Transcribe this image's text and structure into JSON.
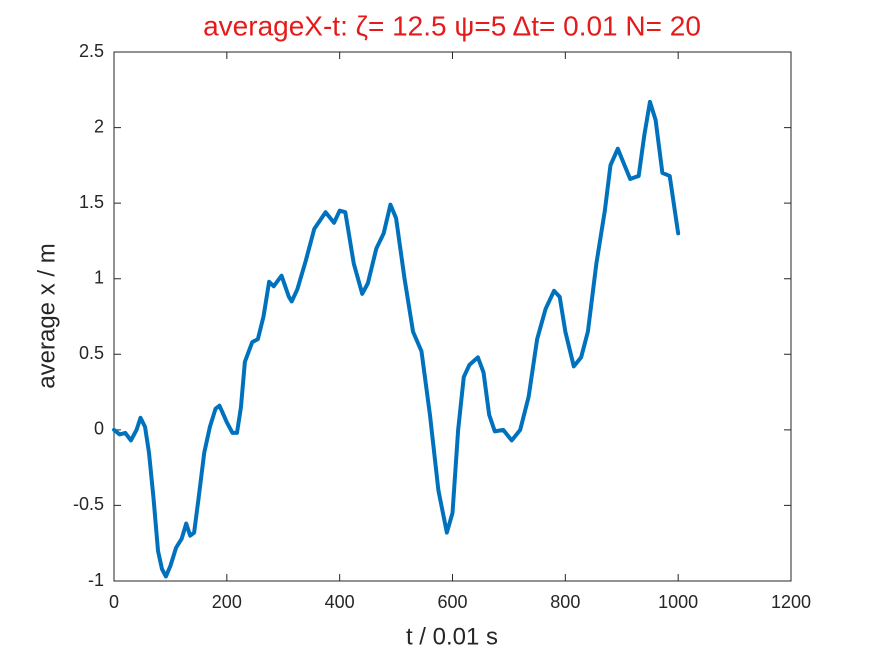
{
  "chart_data": {
    "type": "line",
    "title": "averageX-t:  ζ= 12.5 ψ=5 Δt= 0.01 N= 20",
    "x_label": "t / 0.01 s",
    "y_label": "average x / m",
    "x": [
      0,
      10,
      20,
      30,
      40,
      47,
      55,
      62,
      70,
      78,
      85,
      92,
      100,
      110,
      120,
      128,
      135,
      142,
      150,
      160,
      170,
      180,
      187,
      200,
      210,
      218,
      225,
      232,
      245,
      255,
      265,
      275,
      283,
      297,
      310,
      315,
      325,
      340,
      355,
      375,
      390,
      400,
      410,
      425,
      440,
      450,
      465,
      478,
      490,
      500,
      515,
      530,
      545,
      560,
      575,
      590,
      600,
      610,
      620,
      630,
      645,
      655,
      665,
      675,
      690,
      705,
      720,
      735,
      750,
      765,
      780,
      790,
      800,
      815,
      828,
      840,
      855,
      870,
      880,
      893,
      905,
      915,
      930,
      940,
      950,
      960,
      972,
      985,
      1000
    ],
    "series": [
      {
        "name": "average x",
        "color": "#0072bd",
        "values": [
          0.0,
          -0.03,
          -0.02,
          -0.07,
          0.0,
          0.08,
          0.02,
          -0.15,
          -0.45,
          -0.8,
          -0.92,
          -0.97,
          -0.9,
          -0.78,
          -0.72,
          -0.62,
          -0.7,
          -0.68,
          -0.45,
          -0.15,
          0.02,
          0.14,
          0.16,
          0.05,
          -0.02,
          -0.02,
          0.15,
          0.45,
          0.58,
          0.6,
          0.75,
          0.98,
          0.95,
          1.02,
          0.88,
          0.85,
          0.93,
          1.12,
          1.33,
          1.44,
          1.37,
          1.45,
          1.44,
          1.1,
          0.9,
          0.97,
          1.2,
          1.3,
          1.49,
          1.4,
          1.0,
          0.65,
          0.52,
          0.1,
          -0.4,
          -0.68,
          -0.55,
          0.0,
          0.35,
          0.43,
          0.48,
          0.38,
          0.1,
          -0.01,
          0.0,
          -0.07,
          0.0,
          0.22,
          0.6,
          0.8,
          0.92,
          0.88,
          0.65,
          0.42,
          0.48,
          0.65,
          1.1,
          1.45,
          1.75,
          1.86,
          1.75,
          1.66,
          1.68,
          1.95,
          2.17,
          2.05,
          1.7,
          1.68,
          1.3
        ]
      }
    ],
    "xlim": [
      0,
      1200
    ],
    "xticks": [
      0,
      200,
      400,
      600,
      800,
      1000,
      1200
    ],
    "ylim": [
      -1,
      2.5
    ],
    "yticks": [
      -1,
      -0.5,
      0,
      0.5,
      1,
      1.5,
      2,
      2.5
    ],
    "title_color": "#e51a1a"
  }
}
